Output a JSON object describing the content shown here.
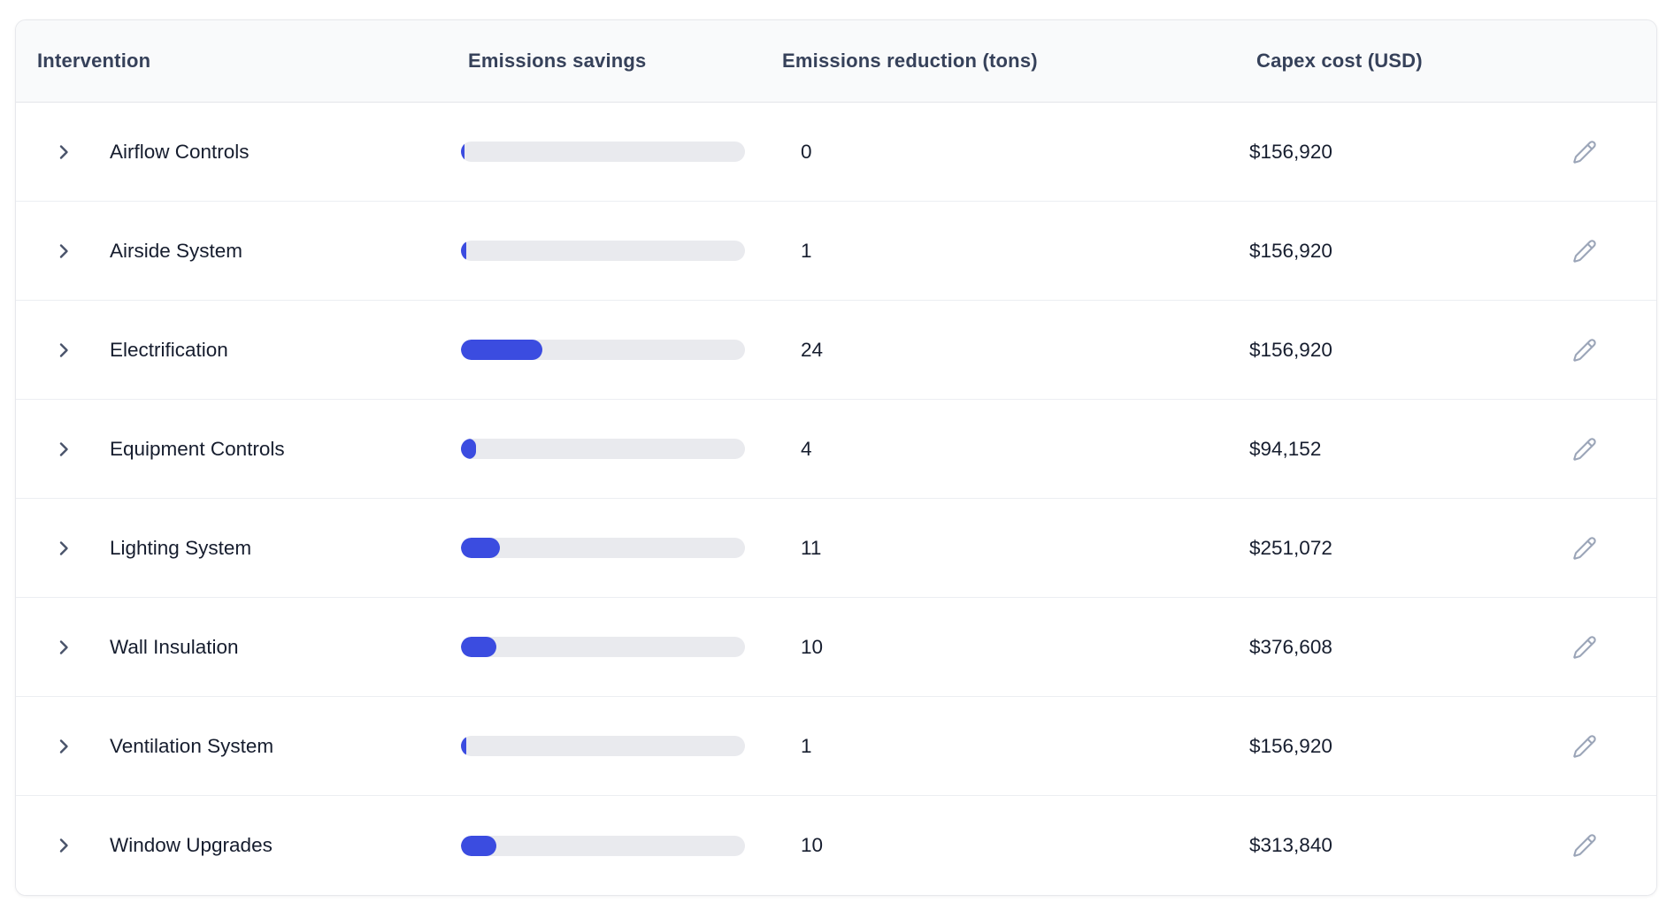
{
  "table": {
    "columns": {
      "intervention": "Intervention",
      "emissions_savings": "Emissions savings",
      "emissions_reduction": "Emissions reduction (tons)",
      "capex_cost": "Capex cost (USD)"
    },
    "rows": [
      {
        "name": "Airflow Controls",
        "bar_percent": 1.2,
        "emissions_reduction_tons": "0",
        "capex_cost": "$156,920"
      },
      {
        "name": "Airside System",
        "bar_percent": 1.9,
        "emissions_reduction_tons": "1",
        "capex_cost": "$156,920"
      },
      {
        "name": "Electrification",
        "bar_percent": 28.7,
        "emissions_reduction_tons": "24",
        "capex_cost": "$156,920"
      },
      {
        "name": "Equipment Controls",
        "bar_percent": 5.3,
        "emissions_reduction_tons": "4",
        "capex_cost": "$94,152"
      },
      {
        "name": "Lighting System",
        "bar_percent": 13.7,
        "emissions_reduction_tons": "11",
        "capex_cost": "$251,072"
      },
      {
        "name": "Wall Insulation",
        "bar_percent": 12.5,
        "emissions_reduction_tons": "10",
        "capex_cost": "$376,608"
      },
      {
        "name": "Ventilation System",
        "bar_percent": 1.9,
        "emissions_reduction_tons": "1",
        "capex_cost": "$156,920"
      },
      {
        "name": "Window Upgrades",
        "bar_percent": 12.5,
        "emissions_reduction_tons": "10",
        "capex_cost": "$313,840"
      }
    ]
  },
  "colors": {
    "bar_fill": "#3b4ce0",
    "bar_track": "#e9eaee",
    "header_bg": "#f9fafb",
    "header_text": "#36415a",
    "body_text": "#161d2e",
    "edit_icon": "#9ba5b8",
    "card_border": "#e7e8ec"
  },
  "icons": {
    "row_expand": "chevron-right",
    "row_edit": "pencil"
  }
}
